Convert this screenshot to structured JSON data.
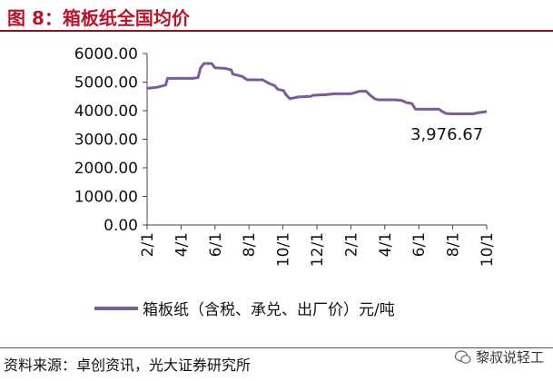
{
  "header": {
    "title": "图 8：箱板纸全国均价"
  },
  "footer": {
    "source": "资料来源：卓创资讯，光大证券研究所",
    "watermark": "黎叔说轻工"
  },
  "colors": {
    "line": "#7b5c9b",
    "title": "#b8142a",
    "rule": "#8a1520"
  },
  "chart_data": {
    "type": "line",
    "x_tick_labels": [
      "2/1",
      "4/1",
      "6/1",
      "8/1",
      "10/1",
      "12/1",
      "2/1",
      "4/1",
      "6/1",
      "8/1",
      "10/1"
    ],
    "y_tick_labels": [
      "0.00",
      "1000.00",
      "2000.00",
      "3000.00",
      "4000.00",
      "5000.00",
      "6000.00"
    ],
    "ylim": [
      0,
      6000
    ],
    "x_range": [
      0,
      20
    ],
    "grid": false,
    "legend_position": "bottom",
    "annotation": {
      "text": "3,976.67",
      "x": 20,
      "y": 3976.67
    },
    "series": [
      {
        "name": "箱板纸（含税、承兑、出厂价）元/吨",
        "points": [
          [
            0,
            4780
          ],
          [
            0.6,
            4820
          ],
          [
            1.1,
            4900
          ],
          [
            1.2,
            5130
          ],
          [
            1.5,
            5130
          ],
          [
            2.7,
            5130
          ],
          [
            3.0,
            5160
          ],
          [
            3.15,
            5500
          ],
          [
            3.35,
            5650
          ],
          [
            3.8,
            5650
          ],
          [
            4.0,
            5500
          ],
          [
            4.6,
            5480
          ],
          [
            4.95,
            5430
          ],
          [
            5.05,
            5280
          ],
          [
            5.6,
            5200
          ],
          [
            5.9,
            5080
          ],
          [
            6.8,
            5080
          ],
          [
            7.2,
            4950
          ],
          [
            7.5,
            4880
          ],
          [
            7.7,
            4750
          ],
          [
            8.05,
            4700
          ],
          [
            8.15,
            4580
          ],
          [
            8.4,
            4420
          ],
          [
            8.9,
            4480
          ],
          [
            9.6,
            4500
          ],
          [
            9.8,
            4540
          ],
          [
            10.5,
            4560
          ],
          [
            11.0,
            4590
          ],
          [
            12.0,
            4590
          ],
          [
            12.3,
            4640
          ],
          [
            12.5,
            4680
          ],
          [
            12.9,
            4680
          ],
          [
            13.1,
            4560
          ],
          [
            13.4,
            4420
          ],
          [
            13.6,
            4380
          ],
          [
            14.6,
            4380
          ],
          [
            15.0,
            4360
          ],
          [
            15.3,
            4280
          ],
          [
            15.6,
            4250
          ],
          [
            15.8,
            4050
          ],
          [
            17.2,
            4050
          ],
          [
            17.35,
            3980
          ],
          [
            17.6,
            3900
          ],
          [
            18.0,
            3890
          ],
          [
            19.2,
            3890
          ],
          [
            19.5,
            3930
          ],
          [
            19.9,
            3960
          ],
          [
            20,
            3976.67
          ]
        ]
      }
    ]
  }
}
